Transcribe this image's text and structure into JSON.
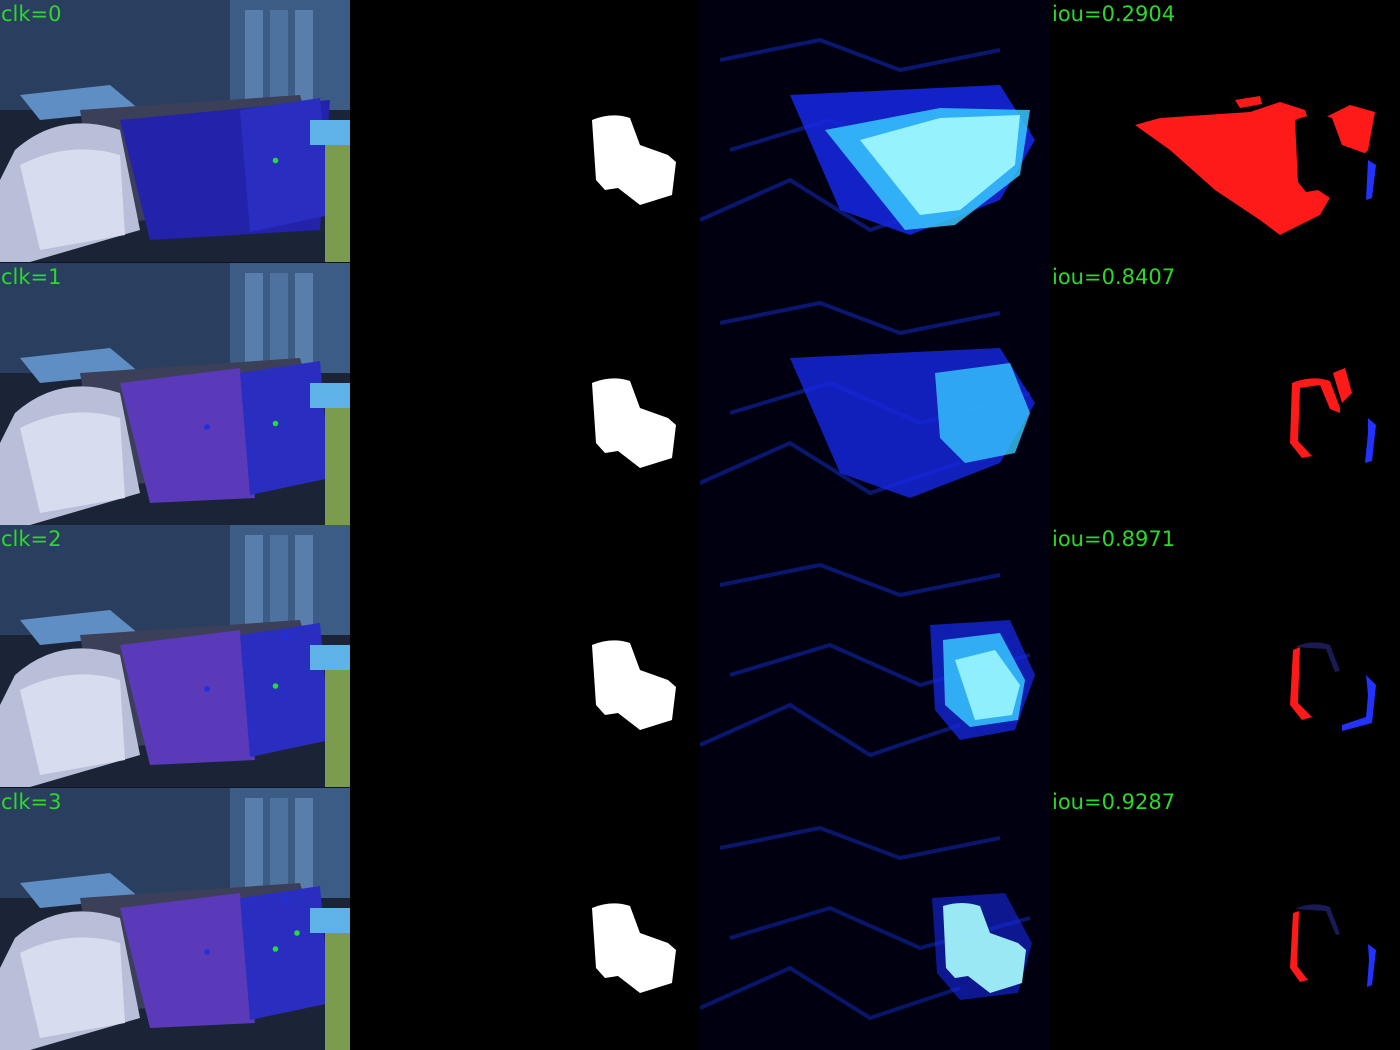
{
  "colors": {
    "label_text": "#2bd92b",
    "positive_click": "#22dd33",
    "negative_click": "#1f2fe0",
    "false_negative": "#ff1a1a",
    "false_positive": "#2233ff",
    "mask": "#ffffff",
    "heat_high": "#a8ffff",
    "heat_mid": "#1a3cff",
    "background": "#000000"
  },
  "panels": [
    "image-with-clicks",
    "predicted-mask",
    "probability-map",
    "error-map"
  ],
  "rows": [
    {
      "click_label": "clk=0",
      "iou_label": "iou=0.2904"
    },
    {
      "click_label": "clk=1",
      "iou_label": "iou=0.8407"
    },
    {
      "click_label": "clk=2",
      "iou_label": "iou=0.8971"
    },
    {
      "click_label": "clk=3",
      "iou_label": "iou=0.9287"
    }
  ]
}
